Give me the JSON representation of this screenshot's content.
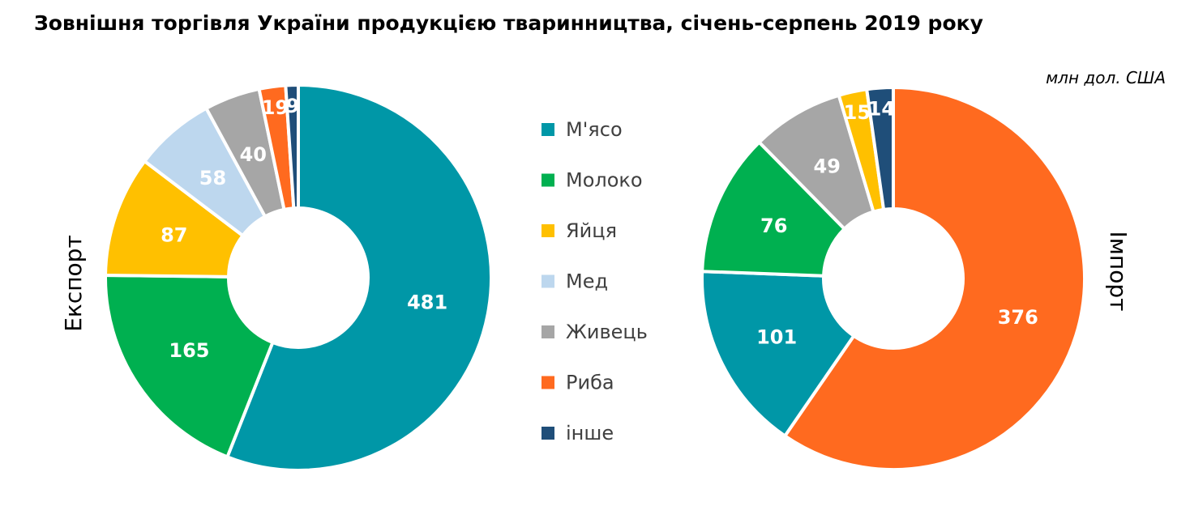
{
  "title": "Зовнішня торгівля України продукцією тваринництва, січень-серпень 2019 року",
  "unit": "млн дол. США",
  "colors": {
    "М'ясо": "#0097A7",
    "Молоко": "#00B050",
    "Яйця": "#FFC000",
    "Мед": "#BDD7EE",
    "Живець": "#A6A6A6",
    "Риба": "#FF6A1F",
    "інше": "#1F4E79"
  },
  "chart_data": [
    {
      "type": "pie",
      "variant": "donut",
      "label": "Експорт",
      "categories": [
        "М'ясо",
        "Молоко",
        "Яйця",
        "Мед",
        "Живець",
        "Риба",
        "інше"
      ],
      "values": [
        481,
        165,
        87,
        58,
        40,
        19,
        9
      ],
      "data_labels": [
        "481",
        "165",
        "87",
        "58",
        "40",
        "19",
        "9"
      ]
    },
    {
      "type": "pie",
      "variant": "donut",
      "label": "Імпорт",
      "categories": [
        "Риба",
        "М'ясо",
        "Молоко",
        "Живець",
        "Яйця",
        "інше"
      ],
      "values": [
        376,
        101,
        76,
        49,
        15,
        14
      ],
      "data_labels": [
        "376",
        "101",
        "76",
        "49",
        "15",
        "14"
      ]
    }
  ],
  "legend": {
    "position": "center",
    "items": [
      "М'ясо",
      "Молоко",
      "Яйця",
      "Мед",
      "Живець",
      "Риба",
      "інше"
    ]
  }
}
